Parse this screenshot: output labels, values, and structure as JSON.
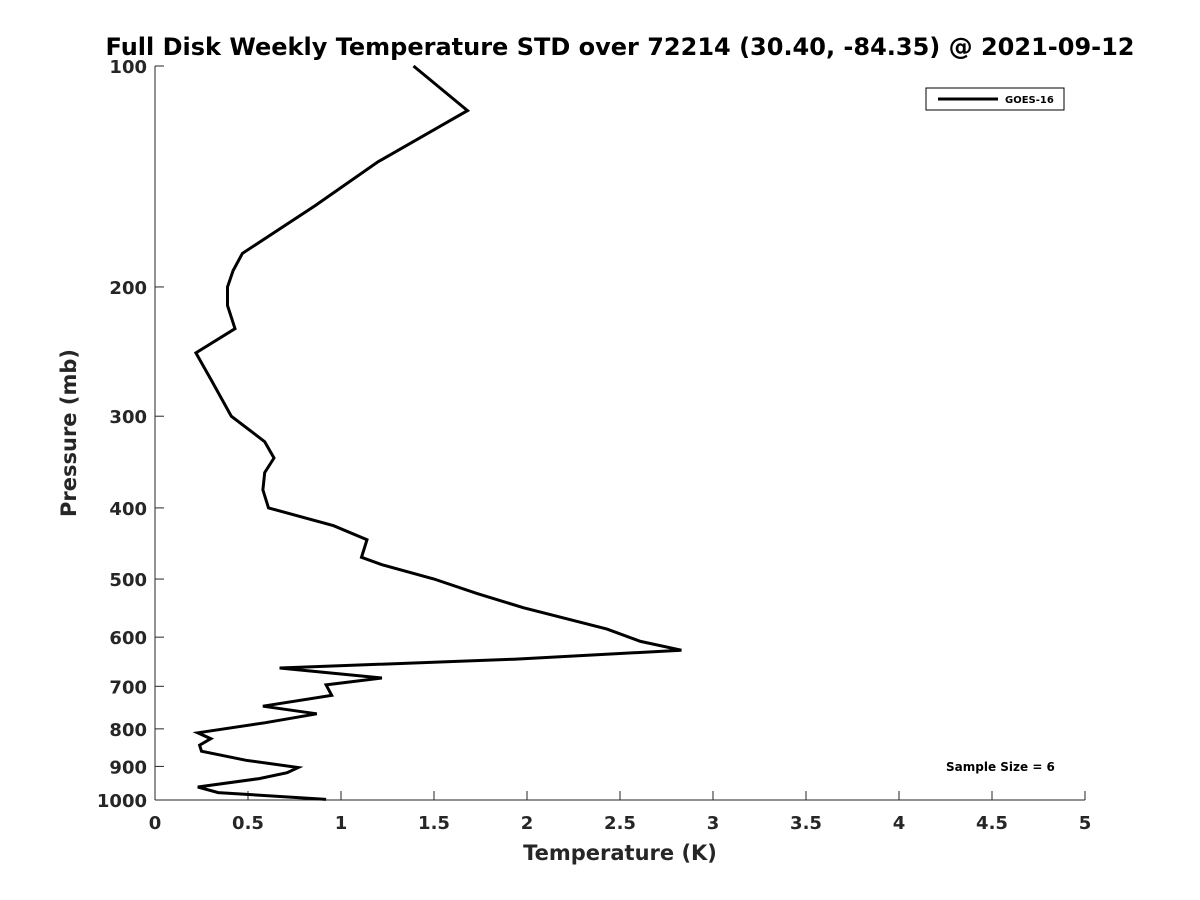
{
  "chart_data": {
    "type": "line",
    "title": "Full Disk Weekly Temperature STD over 72214 (30.40, -84.35) @ 2021-09-12",
    "xlabel": "Temperature (K)",
    "ylabel": "Pressure (mb)",
    "xlim": [
      0,
      5
    ],
    "ylim": [
      1000,
      100
    ],
    "yscale": "log",
    "y_reversed": true,
    "xticks": [
      0,
      0.5,
      1,
      1.5,
      2,
      2.5,
      3,
      3.5,
      4,
      4.5,
      5
    ],
    "xtick_labels": [
      "0",
      "0.5",
      "1",
      "1.5",
      "2",
      "2.5",
      "3",
      "3.5",
      "4",
      "4.5",
      "5"
    ],
    "yticks": [
      100,
      200,
      300,
      400,
      500,
      600,
      700,
      800,
      900,
      1000
    ],
    "ytick_labels": [
      "100",
      "200",
      "300",
      "400",
      "500",
      "600",
      "700",
      "800",
      "900",
      "1000"
    ],
    "grid": false,
    "legend_position": "top-right",
    "series": [
      {
        "name": "GOES-16",
        "color": "#000000",
        "points": [
          [
            1.39,
            100
          ],
          [
            1.68,
            115
          ],
          [
            1.2,
            135
          ],
          [
            0.86,
            155
          ],
          [
            0.47,
            180
          ],
          [
            0.42,
            190
          ],
          [
            0.39,
            200
          ],
          [
            0.39,
            212
          ],
          [
            0.43,
            228
          ],
          [
            0.22,
            246
          ],
          [
            0.31,
            270
          ],
          [
            0.41,
            300
          ],
          [
            0.59,
            325
          ],
          [
            0.64,
            342
          ],
          [
            0.59,
            358
          ],
          [
            0.58,
            378
          ],
          [
            0.61,
            400
          ],
          [
            0.96,
            423
          ],
          [
            1.14,
            442
          ],
          [
            1.11,
            467
          ],
          [
            1.22,
            478
          ],
          [
            1.5,
            500
          ],
          [
            1.73,
            523
          ],
          [
            1.98,
            547
          ],
          [
            2.43,
            585
          ],
          [
            2.61,
            608
          ],
          [
            2.83,
            625
          ],
          [
            1.93,
            643
          ],
          [
            0.67,
            661
          ],
          [
            1.22,
            682
          ],
          [
            0.92,
            697
          ],
          [
            0.95,
            720
          ],
          [
            0.58,
            745
          ],
          [
            0.87,
            763
          ],
          [
            0.59,
            785
          ],
          [
            0.23,
            810
          ],
          [
            0.3,
            825
          ],
          [
            0.24,
            842
          ],
          [
            0.25,
            858
          ],
          [
            0.49,
            883
          ],
          [
            0.77,
            903
          ],
          [
            0.71,
            918
          ],
          [
            0.56,
            935
          ],
          [
            0.23,
            960
          ],
          [
            0.34,
            977
          ],
          [
            0.92,
            998
          ]
        ]
      }
    ],
    "annotations": [
      "Sample Size = 6"
    ]
  }
}
